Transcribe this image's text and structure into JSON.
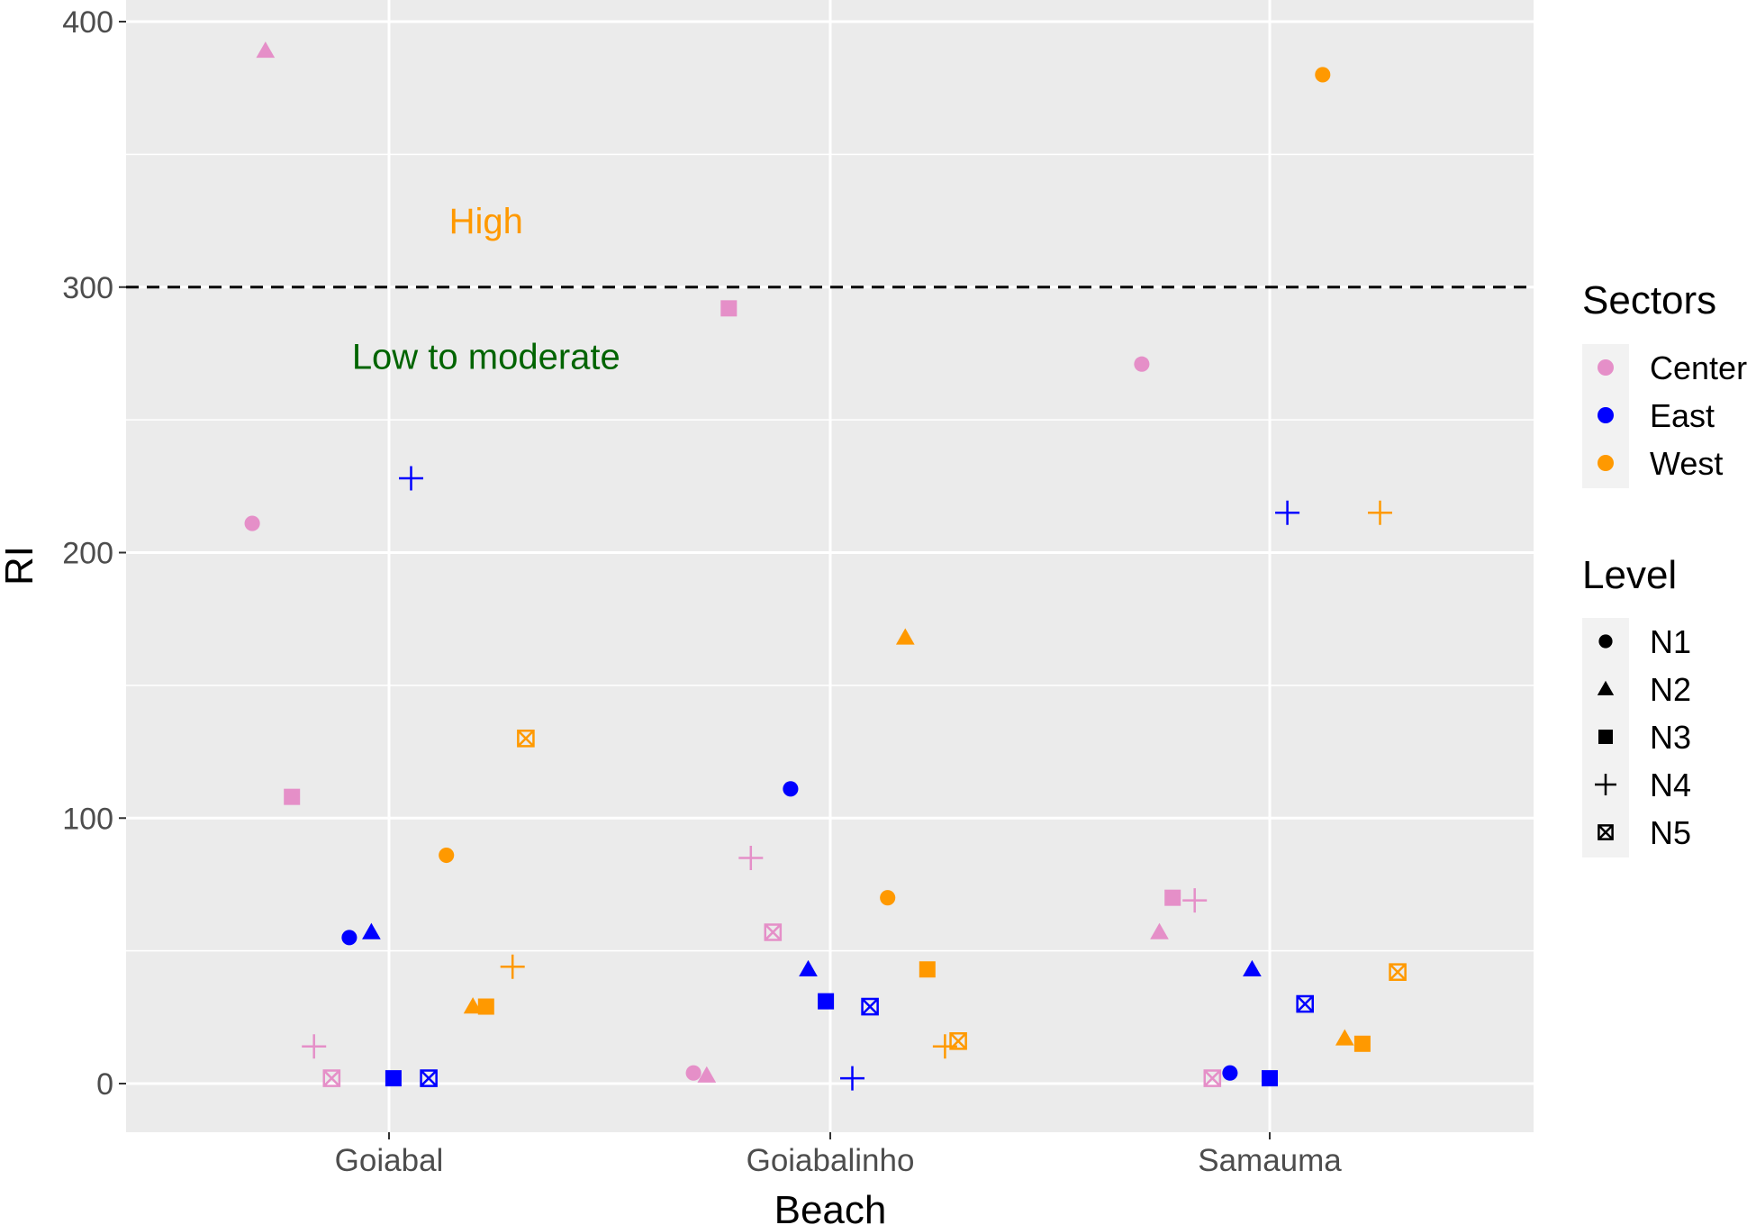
{
  "chart_data": {
    "type": "scatter",
    "xlabel": "Beach",
    "ylabel": "RI",
    "categories": [
      "Goiabal",
      "Goiabalinho",
      "Samauma"
    ],
    "ylim": [
      -18,
      400
    ],
    "yticks": [
      0,
      100,
      200,
      300,
      400
    ],
    "grid": true,
    "reference_line": {
      "y": 300,
      "style": "dashed"
    },
    "annotations": [
      {
        "text": "High",
        "category": "Goiabal",
        "offset": 0.22,
        "y": 325,
        "color": "#FF9900"
      },
      {
        "text": "Low to moderate",
        "category": "Goiabal",
        "offset": 0.22,
        "y": 274,
        "color": "#006400"
      }
    ],
    "color_legend": {
      "title": "Sectors",
      "placement": "right",
      "entries": [
        {
          "name": "Center",
          "color": "#E58FC8"
        },
        {
          "name": "East",
          "color": "#0000FF"
        },
        {
          "name": "West",
          "color": "#FF9900"
        }
      ]
    },
    "shape_legend": {
      "title": "Level",
      "placement": "right",
      "entries": [
        {
          "name": "N1",
          "shape": "circle"
        },
        {
          "name": "N2",
          "shape": "triangle"
        },
        {
          "name": "N3",
          "shape": "square"
        },
        {
          "name": "N4",
          "shape": "plus"
        },
        {
          "name": "N5",
          "shape": "square-cross"
        }
      ]
    },
    "points": [
      {
        "beach": "Goiabal",
        "jitter": -0.31,
        "sector": "Center",
        "level": "N1",
        "y": 211
      },
      {
        "beach": "Goiabal",
        "jitter": -0.28,
        "sector": "Center",
        "level": "N2",
        "y": 389
      },
      {
        "beach": "Goiabal",
        "jitter": -0.22,
        "sector": "Center",
        "level": "N3",
        "y": 108
      },
      {
        "beach": "Goiabal",
        "jitter": -0.17,
        "sector": "Center",
        "level": "N4",
        "y": 14
      },
      {
        "beach": "Goiabal",
        "jitter": -0.13,
        "sector": "Center",
        "level": "N5",
        "y": 2
      },
      {
        "beach": "Goiabal",
        "jitter": -0.09,
        "sector": "East",
        "level": "N1",
        "y": 55
      },
      {
        "beach": "Goiabal",
        "jitter": -0.04,
        "sector": "East",
        "level": "N2",
        "y": 57
      },
      {
        "beach": "Goiabal",
        "jitter": 0.01,
        "sector": "East",
        "level": "N3",
        "y": 2
      },
      {
        "beach": "Goiabal",
        "jitter": 0.05,
        "sector": "East",
        "level": "N4",
        "y": 228
      },
      {
        "beach": "Goiabal",
        "jitter": 0.09,
        "sector": "East",
        "level": "N5",
        "y": 2
      },
      {
        "beach": "Goiabal",
        "jitter": 0.13,
        "sector": "West",
        "level": "N1",
        "y": 86
      },
      {
        "beach": "Goiabal",
        "jitter": 0.19,
        "sector": "West",
        "level": "N2",
        "y": 29
      },
      {
        "beach": "Goiabal",
        "jitter": 0.22,
        "sector": "West",
        "level": "N3",
        "y": 29
      },
      {
        "beach": "Goiabal",
        "jitter": 0.28,
        "sector": "West",
        "level": "N4",
        "y": 44
      },
      {
        "beach": "Goiabal",
        "jitter": 0.31,
        "sector": "West",
        "level": "N5",
        "y": 130
      },
      {
        "beach": "Goiabalinho",
        "jitter": -0.31,
        "sector": "Center",
        "level": "N1",
        "y": 4
      },
      {
        "beach": "Goiabalinho",
        "jitter": -0.28,
        "sector": "Center",
        "level": "N2",
        "y": 3
      },
      {
        "beach": "Goiabalinho",
        "jitter": -0.23,
        "sector": "Center",
        "level": "N3",
        "y": 292
      },
      {
        "beach": "Goiabalinho",
        "jitter": -0.18,
        "sector": "Center",
        "level": "N4",
        "y": 85
      },
      {
        "beach": "Goiabalinho",
        "jitter": -0.13,
        "sector": "Center",
        "level": "N5",
        "y": 57
      },
      {
        "beach": "Goiabalinho",
        "jitter": -0.09,
        "sector": "East",
        "level": "N1",
        "y": 111
      },
      {
        "beach": "Goiabalinho",
        "jitter": -0.05,
        "sector": "East",
        "level": "N2",
        "y": 43
      },
      {
        "beach": "Goiabalinho",
        "jitter": -0.01,
        "sector": "East",
        "level": "N3",
        "y": 31
      },
      {
        "beach": "Goiabalinho",
        "jitter": 0.05,
        "sector": "East",
        "level": "N4",
        "y": 2
      },
      {
        "beach": "Goiabalinho",
        "jitter": 0.09,
        "sector": "East",
        "level": "N5",
        "y": 29
      },
      {
        "beach": "Goiabalinho",
        "jitter": 0.13,
        "sector": "West",
        "level": "N1",
        "y": 70
      },
      {
        "beach": "Goiabalinho",
        "jitter": 0.17,
        "sector": "West",
        "level": "N2",
        "y": 168
      },
      {
        "beach": "Goiabalinho",
        "jitter": 0.22,
        "sector": "West",
        "level": "N3",
        "y": 43
      },
      {
        "beach": "Goiabalinho",
        "jitter": 0.26,
        "sector": "West",
        "level": "N4",
        "y": 14
      },
      {
        "beach": "Goiabalinho",
        "jitter": 0.29,
        "sector": "West",
        "level": "N5",
        "y": 16
      },
      {
        "beach": "Samauma",
        "jitter": -0.29,
        "sector": "Center",
        "level": "N1",
        "y": 271
      },
      {
        "beach": "Samauma",
        "jitter": -0.25,
        "sector": "Center",
        "level": "N2",
        "y": 57
      },
      {
        "beach": "Samauma",
        "jitter": -0.22,
        "sector": "Center",
        "level": "N3",
        "y": 70
      },
      {
        "beach": "Samauma",
        "jitter": -0.17,
        "sector": "Center",
        "level": "N4",
        "y": 69
      },
      {
        "beach": "Samauma",
        "jitter": -0.13,
        "sector": "Center",
        "level": "N5",
        "y": 2
      },
      {
        "beach": "Samauma",
        "jitter": -0.09,
        "sector": "East",
        "level": "N1",
        "y": 4
      },
      {
        "beach": "Samauma",
        "jitter": -0.04,
        "sector": "East",
        "level": "N2",
        "y": 43
      },
      {
        "beach": "Samauma",
        "jitter": 0.0,
        "sector": "East",
        "level": "N3",
        "y": 2
      },
      {
        "beach": "Samauma",
        "jitter": 0.04,
        "sector": "East",
        "level": "N4",
        "y": 215
      },
      {
        "beach": "Samauma",
        "jitter": 0.08,
        "sector": "East",
        "level": "N5",
        "y": 30
      },
      {
        "beach": "Samauma",
        "jitter": 0.12,
        "sector": "West",
        "level": "N1",
        "y": 380
      },
      {
        "beach": "Samauma",
        "jitter": 0.17,
        "sector": "West",
        "level": "N2",
        "y": 17
      },
      {
        "beach": "Samauma",
        "jitter": 0.21,
        "sector": "West",
        "level": "N3",
        "y": 15
      },
      {
        "beach": "Samauma",
        "jitter": 0.25,
        "sector": "West",
        "level": "N4",
        "y": 215
      },
      {
        "beach": "Samauma",
        "jitter": 0.29,
        "sector": "West",
        "level": "N5",
        "y": 42
      }
    ]
  }
}
